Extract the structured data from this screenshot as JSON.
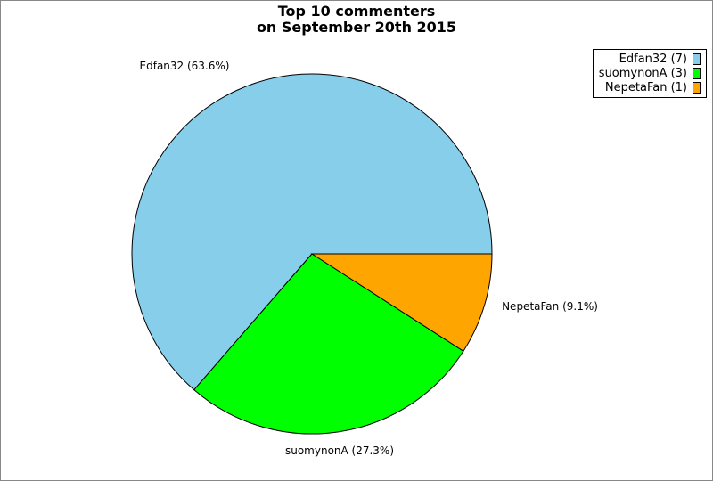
{
  "chart_data": {
    "type": "pie",
    "title": [
      "Top 10 commenters",
      "on September 20th 2015"
    ],
    "slices": [
      {
        "name": "Edfan32",
        "value": 7,
        "percent": 63.6,
        "label": "Edfan32 (63.6%)",
        "legend": "Edfan32 (7)",
        "color": "#87ceeb"
      },
      {
        "name": "suomynonA",
        "value": 3,
        "percent": 27.3,
        "label": "suomynonA (27.3%)",
        "legend": "suomynonA (3)",
        "color": "#00ff00"
      },
      {
        "name": "NepetaFan",
        "value": 1,
        "percent": 9.1,
        "label": "NepetaFan (9.1%)",
        "legend": "NepetaFan (1)",
        "color": "#ffa500"
      }
    ],
    "legend_position": "top-right"
  }
}
